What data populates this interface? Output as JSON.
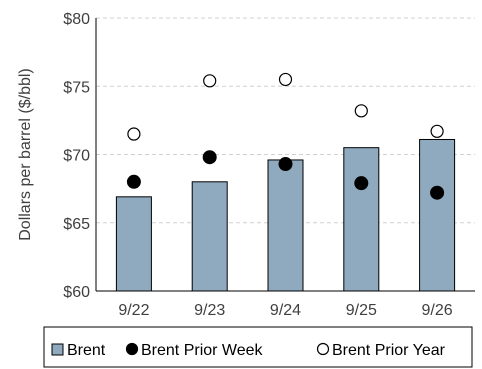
{
  "chart_data": {
    "type": "bar",
    "categories": [
      "9/22",
      "9/23",
      "9/24",
      "9/25",
      "9/26"
    ],
    "ylabel": "Dollars per barrel ($/bbl)",
    "ylim": [
      60,
      80
    ],
    "yticks": [
      60,
      65,
      70,
      75,
      80
    ],
    "ytick_labels": [
      "$60",
      "$65",
      "$70",
      "$75",
      "$80"
    ],
    "grid": true,
    "legend_position": "bottom",
    "series": [
      {
        "name": "Brent",
        "kind": "bar",
        "values": [
          66.9,
          68.0,
          69.6,
          70.5,
          71.1
        ],
        "color": "#8FAABF",
        "stroke": "#000000"
      },
      {
        "name": "Brent Prior Week",
        "kind": "marker",
        "marker": "filled-circle",
        "values": [
          68.0,
          69.8,
          69.3,
          67.9,
          67.2
        ],
        "color": "#000000"
      },
      {
        "name": "Brent Prior Year",
        "kind": "marker",
        "marker": "open-circle",
        "values": [
          71.5,
          75.4,
          75.5,
          73.2,
          71.7
        ],
        "color": "#000000"
      }
    ]
  }
}
